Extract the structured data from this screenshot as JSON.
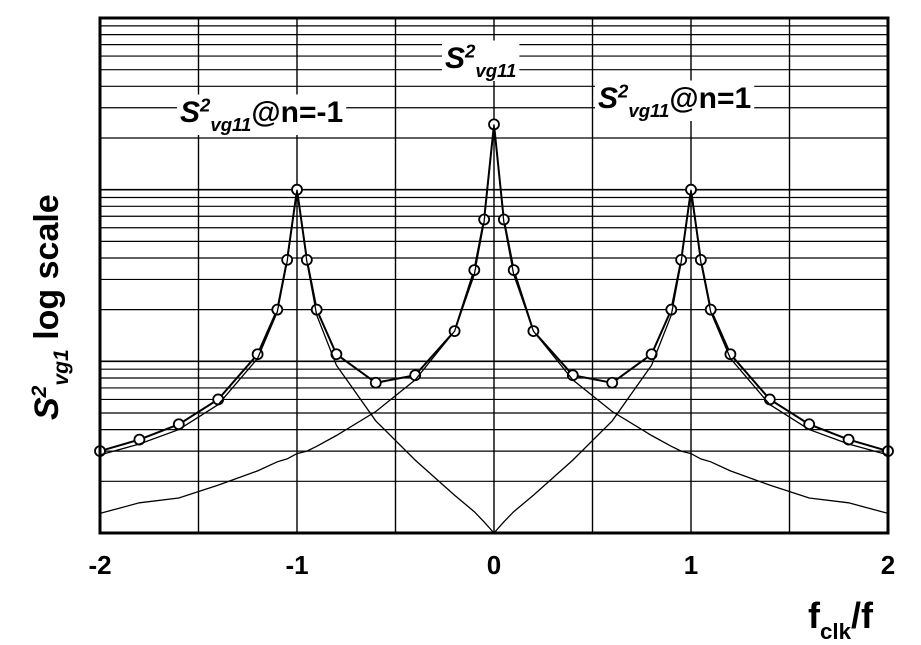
{
  "chart_data": {
    "type": "line",
    "log_scale": true,
    "grid": true,
    "xlabel": {
      "base": "f",
      "sub": "clk",
      "suffix": "/f"
    },
    "ylabel": {
      "base": "S",
      "sup": "2",
      "sub": "vg1",
      "suffix": " log scale"
    },
    "annotations": [
      {
        "base": "S",
        "sup": "2",
        "sub": "vg11",
        "suffix": "@n=-1"
      },
      {
        "base": "S",
        "sup": "2",
        "sub": "vg11"
      },
      {
        "base": "S",
        "sup": "2",
        "sub": "vg11",
        "suffix": "@n=1"
      }
    ],
    "xlim": [
      -2,
      2
    ],
    "xticks": [
      -2,
      -1,
      0,
      1,
      2
    ],
    "x_minor_ticks": [
      -1.5,
      -0.5,
      0.5,
      1.5
    ],
    "ylim": [
      1,
      1000
    ],
    "x": [
      -2,
      -1.8,
      -1.6,
      -1.4,
      -1.2,
      -1.1,
      -1.05,
      -1,
      -0.95,
      -0.9,
      -0.8,
      -0.6,
      -0.4,
      -0.2,
      -0.1,
      -0.05,
      0,
      0.05,
      0.1,
      0.2,
      0.4,
      0.6,
      0.8,
      0.9,
      0.95,
      1,
      1.05,
      1.1,
      1.2,
      1.4,
      1.6,
      1.8,
      2
    ],
    "series": [
      {
        "color": "#000000",
        "markers": true,
        "values": [
          3.0,
          3.5,
          4.3,
          6.0,
          11,
          20,
          39,
          100,
          39,
          20,
          11,
          7.5,
          8.3,
          15,
          34,
          67,
          240,
          67,
          34,
          15,
          8.3,
          7.5,
          11,
          20,
          39,
          100,
          39,
          20,
          11,
          6.0,
          4.3,
          3.5,
          3.0
        ]
      },
      {
        "color": "#000000",
        "markers": false,
        "values": [
          1.3,
          1.5,
          1.6,
          1.9,
          2.3,
          2.6,
          2.7,
          2.9,
          3.0,
          3.2,
          3.7,
          5.1,
          7.8,
          15,
          32,
          65,
          240,
          65,
          32,
          15,
          7.8,
          5.1,
          3.7,
          3.2,
          3.0,
          2.9,
          2.7,
          2.6,
          2.3,
          1.9,
          1.6,
          1.5,
          1.3
        ]
      },
      {
        "color": "#000000",
        "markers": false,
        "values": [
          2.85,
          3.3,
          4.0,
          5.6,
          10.4,
          19.4,
          38,
          100,
          38,
          18.6,
          9.5,
          4.5,
          2.66,
          1.66,
          1.33,
          1.16,
          1.0,
          null,
          null,
          null,
          null,
          null,
          null,
          null,
          null,
          null,
          null,
          null,
          null,
          null,
          null,
          null,
          null
        ]
      },
      {
        "color": "#000000",
        "markers": false,
        "values": [
          null,
          null,
          null,
          null,
          null,
          null,
          null,
          null,
          null,
          null,
          null,
          null,
          null,
          null,
          null,
          null,
          1.0,
          1.16,
          1.33,
          1.66,
          2.66,
          4.5,
          9.5,
          18.6,
          38,
          100,
          38,
          19.4,
          10.4,
          5.6,
          4.0,
          3.3,
          2.85
        ]
      }
    ]
  }
}
